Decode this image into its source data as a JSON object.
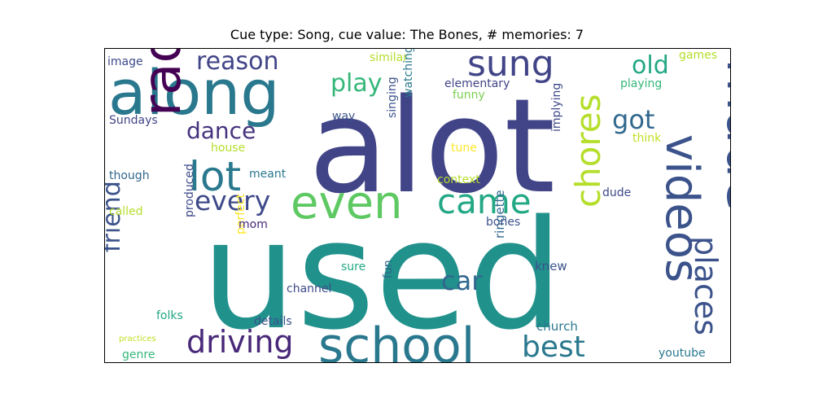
{
  "title": "Cue type: Song, cue value: The Bones, # memories: 7",
  "chart_data": {
    "type": "wordcloud",
    "title": "Cue type: Song, cue value: The Bones, # memories: 7",
    "colormap": "viridis",
    "words": [
      {
        "text": "used",
        "weight": 1.0,
        "color": "#21918c",
        "orientation": "horizontal"
      },
      {
        "text": "alot",
        "weight": 0.85,
        "color": "#414487",
        "orientation": "horizontal"
      },
      {
        "text": "along",
        "weight": 0.5,
        "color": "#2a788e",
        "orientation": "horizontal"
      },
      {
        "text": "made",
        "weight": 0.45,
        "color": "#3b528b",
        "orientation": "vertical"
      },
      {
        "text": "radio",
        "weight": 0.43,
        "color": "#440154",
        "orientation": "vertical"
      },
      {
        "text": "school",
        "weight": 0.38,
        "color": "#2a788e",
        "orientation": "horizontal"
      },
      {
        "text": "videos",
        "weight": 0.37,
        "color": "#3b528b",
        "orientation": "vertical"
      },
      {
        "text": "even",
        "weight": 0.36,
        "color": "#5ec962",
        "orientation": "horizontal"
      },
      {
        "text": "lot",
        "weight": 0.33,
        "color": "#2a788e",
        "orientation": "horizontal"
      },
      {
        "text": "sung",
        "weight": 0.3,
        "color": "#414487",
        "orientation": "horizontal"
      },
      {
        "text": "chores",
        "weight": 0.28,
        "color": "#b5de2b",
        "orientation": "vertical"
      },
      {
        "text": "came",
        "weight": 0.27,
        "color": "#22a884",
        "orientation": "horizontal"
      },
      {
        "text": "places",
        "weight": 0.25,
        "color": "#3b528b",
        "orientation": "vertical"
      },
      {
        "text": "driving",
        "weight": 0.25,
        "color": "#482878",
        "orientation": "horizontal"
      },
      {
        "text": "best",
        "weight": 0.23,
        "color": "#2a788e",
        "orientation": "horizontal"
      },
      {
        "text": "every",
        "weight": 0.22,
        "color": "#3e4989",
        "orientation": "horizontal"
      },
      {
        "text": "got",
        "weight": 0.21,
        "color": "#31688e",
        "orientation": "horizontal"
      },
      {
        "text": "car",
        "weight": 0.21,
        "color": "#31688e",
        "orientation": "horizontal"
      },
      {
        "text": "friend",
        "weight": 0.2,
        "color": "#3b528b",
        "orientation": "vertical"
      },
      {
        "text": "reason",
        "weight": 0.19,
        "color": "#414487",
        "orientation": "horizontal"
      },
      {
        "text": "play",
        "weight": 0.19,
        "color": "#35b779",
        "orientation": "horizontal"
      },
      {
        "text": "old",
        "weight": 0.19,
        "color": "#22a884",
        "orientation": "horizontal"
      },
      {
        "text": "dance",
        "weight": 0.17,
        "color": "#46337e",
        "orientation": "horizontal"
      },
      {
        "text": "youtube",
        "weight": 0.1,
        "color": "#2a788e",
        "orientation": "horizontal"
      },
      {
        "text": "church",
        "weight": 0.1,
        "color": "#2a788e",
        "orientation": "horizontal"
      },
      {
        "text": "knew",
        "weight": 0.1,
        "color": "#3b528b",
        "orientation": "horizontal"
      },
      {
        "text": "ringette",
        "weight": 0.1,
        "color": "#31688e",
        "orientation": "vertical"
      },
      {
        "text": "bones",
        "weight": 0.1,
        "color": "#3b528b",
        "orientation": "horizontal"
      },
      {
        "text": "implying",
        "weight": 0.1,
        "color": "#3e4989",
        "orientation": "vertical"
      },
      {
        "text": "dude",
        "weight": 0.09,
        "color": "#3e4989",
        "orientation": "horizontal"
      },
      {
        "text": "think",
        "weight": 0.09,
        "color": "#c2df23",
        "orientation": "horizontal"
      },
      {
        "text": "playing",
        "weight": 0.09,
        "color": "#35b779",
        "orientation": "horizontal"
      },
      {
        "text": "games",
        "weight": 0.09,
        "color": "#b5de2b",
        "orientation": "horizontal"
      },
      {
        "text": "elementary",
        "weight": 0.1,
        "color": "#414487",
        "orientation": "horizontal"
      },
      {
        "text": "funny",
        "weight": 0.09,
        "color": "#7ad151",
        "orientation": "horizontal"
      },
      {
        "text": "similar",
        "weight": 0.09,
        "color": "#b5de2b",
        "orientation": "horizontal"
      },
      {
        "text": "tune",
        "weight": 0.09,
        "color": "#fde725",
        "orientation": "horizontal"
      },
      {
        "text": "context",
        "weight": 0.09,
        "color": "#b5de2b",
        "orientation": "horizontal"
      },
      {
        "text": "watching",
        "weight": 0.09,
        "color": "#2a788e",
        "orientation": "vertical"
      },
      {
        "text": "singing",
        "weight": 0.09,
        "color": "#3b528b",
        "orientation": "vertical"
      },
      {
        "text": "way",
        "weight": 0.1,
        "color": "#3b528b",
        "orientation": "horizontal"
      },
      {
        "text": "fun",
        "weight": 0.09,
        "color": "#31688e",
        "orientation": "vertical"
      },
      {
        "text": "channel",
        "weight": 0.1,
        "color": "#3e4989",
        "orientation": "horizontal"
      },
      {
        "text": "sure",
        "weight": 0.09,
        "color": "#22a884",
        "orientation": "horizontal"
      },
      {
        "text": "perfect",
        "weight": 0.09,
        "color": "#fde725",
        "orientation": "vertical"
      },
      {
        "text": "mom",
        "weight": 0.09,
        "color": "#482878",
        "orientation": "horizontal"
      },
      {
        "text": "meant",
        "weight": 0.09,
        "color": "#2a788e",
        "orientation": "horizontal"
      },
      {
        "text": "house",
        "weight": 0.09,
        "color": "#b5de2b",
        "orientation": "horizontal"
      },
      {
        "text": "details",
        "weight": 0.09,
        "color": "#3b528b",
        "orientation": "horizontal"
      },
      {
        "text": "produced",
        "weight": 0.09,
        "color": "#3e4989",
        "orientation": "vertical"
      },
      {
        "text": "folks",
        "weight": 0.09,
        "color": "#22a884",
        "orientation": "horizontal"
      },
      {
        "text": "genre",
        "weight": 0.09,
        "color": "#35b779",
        "orientation": "horizontal"
      },
      {
        "text": "practices",
        "weight": 0.06,
        "color": "#c2df23",
        "orientation": "horizontal"
      },
      {
        "text": "called",
        "weight": 0.09,
        "color": "#b5de2b",
        "orientation": "horizontal"
      },
      {
        "text": "though",
        "weight": 0.09,
        "color": "#31688e",
        "orientation": "horizontal"
      },
      {
        "text": "Sundays",
        "weight": 0.09,
        "color": "#414487",
        "orientation": "horizontal"
      },
      {
        "text": "image",
        "weight": 0.09,
        "color": "#3e4989",
        "orientation": "horizontal"
      }
    ]
  }
}
